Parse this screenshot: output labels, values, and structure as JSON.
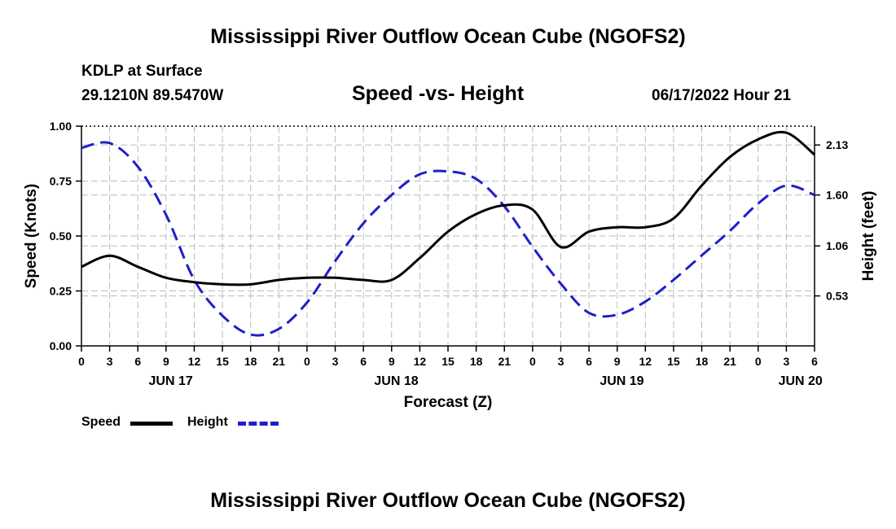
{
  "header": {
    "title": "Mississippi River Outflow Ocean Cube (NGOFS2)",
    "station": "KDLP at Surface",
    "coords": "29.1210N  89.5470W",
    "subtitle": "Speed -vs- Height",
    "datetime": "06/17/2022 Hour 21"
  },
  "footer": {
    "title": "Mississippi River Outflow Ocean Cube (NGOFS2)"
  },
  "legend": {
    "speed_label": "Speed",
    "height_label": "Height"
  },
  "colors": {
    "speed": "#000000",
    "height": "#1f1fc8",
    "grid": "#bbbbbb"
  },
  "chart_data": {
    "type": "line",
    "title": "Speed -vs- Height",
    "xlabel": "Forecast (Z)",
    "ylabel": "Speed (Knots)",
    "y2label": "Height (feet)",
    "xlim": [
      0,
      78
    ],
    "ylim": [
      0,
      1.0
    ],
    "y2lim": [
      0.0,
      2.33
    ],
    "x_ticks": [
      0,
      3,
      6,
      9,
      12,
      15,
      18,
      21,
      24,
      27,
      30,
      33,
      36,
      39,
      42,
      45,
      48,
      51,
      54,
      57,
      60,
      63,
      66,
      69,
      72,
      75,
      78
    ],
    "x_tick_labels": [
      "0",
      "3",
      "6",
      "9",
      "12",
      "15",
      "18",
      "21",
      "0",
      "3",
      "6",
      "9",
      "12",
      "15",
      "18",
      "21",
      "0",
      "3",
      "6",
      "9",
      "12",
      "15",
      "18",
      "21",
      "0",
      "3",
      "6"
    ],
    "date_labels": [
      {
        "x": 9.5,
        "label": "JUN 17"
      },
      {
        "x": 33.5,
        "label": "JUN 18"
      },
      {
        "x": 57.5,
        "label": "JUN 19"
      },
      {
        "x": 76.5,
        "label": "JUN 20"
      }
    ],
    "y_ticks": [
      0,
      0.25,
      0.5,
      0.75,
      1.0
    ],
    "y_tick_labels": [
      "0.00",
      "0.25",
      "0.50",
      "0.75",
      "1.00"
    ],
    "y2_ticks": [
      0.53,
      1.06,
      1.6,
      2.13
    ],
    "y2_tick_labels": [
      "0.53",
      "1.06",
      "1.60",
      "2.13"
    ],
    "series": [
      {
        "name": "Speed",
        "axis": "left",
        "style": "solid",
        "x": [
          0,
          3,
          6,
          9,
          12,
          15,
          18,
          21,
          24,
          27,
          30,
          33,
          36,
          39,
          42,
          45,
          48,
          51,
          54,
          57,
          60,
          63,
          66,
          69,
          72,
          75,
          78
        ],
        "values": [
          0.36,
          0.41,
          0.36,
          0.31,
          0.29,
          0.28,
          0.28,
          0.3,
          0.31,
          0.31,
          0.3,
          0.3,
          0.4,
          0.52,
          0.6,
          0.64,
          0.62,
          0.45,
          0.52,
          0.54,
          0.54,
          0.58,
          0.73,
          0.86,
          0.94,
          0.97,
          0.87
        ]
      },
      {
        "name": "Height",
        "axis": "right",
        "style": "dashed",
        "x": [
          0,
          3,
          6,
          9,
          12,
          15,
          18,
          21,
          24,
          27,
          30,
          33,
          36,
          39,
          42,
          45,
          48,
          51,
          54,
          57,
          60,
          63,
          66,
          69,
          72,
          75,
          78
        ],
        "values": [
          2.1,
          2.15,
          1.9,
          1.39,
          0.7,
          0.32,
          0.12,
          0.18,
          0.46,
          0.9,
          1.3,
          1.6,
          1.82,
          1.85,
          1.77,
          1.48,
          1.05,
          0.66,
          0.35,
          0.33,
          0.47,
          0.7,
          0.96,
          1.22,
          1.51,
          1.7,
          1.6
        ]
      }
    ]
  }
}
